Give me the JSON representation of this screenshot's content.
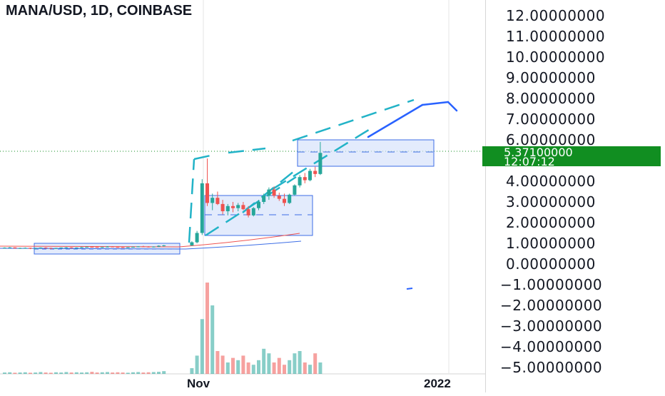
{
  "header": {
    "symbol_title": "MANA/USD, 1D, COINBASE"
  },
  "last_price": {
    "value": "5.37100000",
    "countdown": "12:07:12"
  },
  "colors": {
    "up": "#26a69a",
    "down": "#ef5350",
    "badge": "#118e21",
    "box_fill": "#d7e2fb",
    "box_stroke": "#3d6ee6",
    "dashed": "#22b3c7",
    "arrow": "#2962ff"
  },
  "chart_data": {
    "type": "candlestick",
    "title": "MANA/USD, 1D, COINBASE",
    "y_ticks": [
      "12.00000000",
      "11.00000000",
      "10.00000000",
      "9.00000000",
      "8.00000000",
      "7.00000000",
      "6.00000000",
      "5.37100000",
      "4.00000000",
      "3.00000000",
      "2.00000000",
      "1.00000000",
      "0.00000000",
      "−1.00000000",
      "−2.00000000",
      "−3.00000000",
      "−4.00000000",
      "−5.00000000"
    ],
    "x_ticks": [
      "Nov",
      "2022"
    ],
    "ylim": [
      -5.5,
      12.5
    ],
    "last_close": 5.371,
    "candles": [
      [
        0.78,
        0.8,
        0.75,
        0.79
      ],
      [
        0.79,
        0.82,
        0.77,
        0.8
      ],
      [
        0.8,
        0.81,
        0.74,
        0.76
      ],
      [
        0.76,
        0.79,
        0.73,
        0.77
      ],
      [
        0.77,
        0.8,
        0.75,
        0.78
      ],
      [
        0.78,
        0.79,
        0.72,
        0.74
      ],
      [
        0.74,
        0.78,
        0.72,
        0.77
      ],
      [
        0.77,
        0.8,
        0.75,
        0.79
      ],
      [
        0.79,
        0.81,
        0.76,
        0.77
      ],
      [
        0.77,
        0.79,
        0.74,
        0.75
      ],
      [
        0.75,
        0.78,
        0.73,
        0.77
      ],
      [
        0.77,
        0.8,
        0.76,
        0.79
      ],
      [
        0.79,
        0.82,
        0.77,
        0.8
      ],
      [
        0.8,
        0.81,
        0.76,
        0.78
      ],
      [
        0.78,
        0.8,
        0.76,
        0.79
      ],
      [
        0.79,
        0.83,
        0.78,
        0.81
      ],
      [
        0.81,
        0.84,
        0.79,
        0.83
      ],
      [
        0.83,
        0.85,
        0.8,
        0.82
      ],
      [
        0.82,
        0.84,
        0.79,
        0.8
      ],
      [
        0.8,
        0.83,
        0.78,
        0.82
      ],
      [
        0.82,
        0.86,
        0.8,
        0.84
      ],
      [
        0.84,
        0.86,
        0.81,
        0.82
      ],
      [
        0.82,
        0.84,
        0.79,
        0.81
      ],
      [
        0.81,
        0.83,
        0.78,
        0.8
      ],
      [
        0.8,
        0.82,
        0.77,
        0.81
      ],
      [
        0.81,
        0.84,
        0.79,
        0.83
      ],
      [
        0.83,
        0.86,
        0.81,
        0.85
      ],
      [
        0.85,
        0.88,
        0.82,
        0.84
      ],
      [
        0.84,
        0.86,
        0.8,
        0.82
      ],
      [
        0.82,
        0.85,
        0.8,
        0.84
      ],
      [
        0.84,
        0.9,
        0.82,
        0.88
      ],
      [
        0.88,
        0.92,
        0.85,
        0.9
      ],
      [
        0.9,
        1.1,
        0.88,
        1.05
      ],
      [
        1.05,
        1.6,
        1.0,
        1.5
      ],
      [
        1.5,
        4.1,
        1.4,
        3.9
      ],
      [
        3.9,
        5.1,
        2.8,
        2.95
      ],
      [
        2.95,
        3.4,
        2.6,
        3.2
      ],
      [
        3.2,
        3.5,
        2.85,
        2.9
      ],
      [
        2.9,
        3.1,
        2.4,
        2.55
      ],
      [
        2.55,
        2.9,
        2.35,
        2.8
      ],
      [
        2.8,
        3.0,
        2.5,
        2.7
      ],
      [
        2.7,
        2.95,
        2.55,
        2.85
      ],
      [
        2.85,
        3.0,
        2.6,
        2.65
      ],
      [
        2.65,
        2.8,
        2.25,
        2.35
      ],
      [
        2.35,
        2.75,
        2.3,
        2.7
      ],
      [
        2.7,
        3.1,
        2.6,
        3.0
      ],
      [
        3.0,
        3.4,
        2.9,
        3.3
      ],
      [
        3.3,
        3.7,
        3.1,
        3.6
      ],
      [
        3.6,
        3.75,
        3.2,
        3.3
      ],
      [
        3.3,
        3.45,
        3.05,
        3.15
      ],
      [
        3.15,
        3.4,
        2.8,
        2.95
      ],
      [
        2.95,
        3.4,
        2.9,
        3.35
      ],
      [
        3.35,
        3.85,
        3.3,
        3.8
      ],
      [
        3.8,
        4.3,
        3.7,
        4.2
      ],
      [
        4.2,
        4.4,
        3.9,
        4.05
      ],
      [
        4.05,
        4.6,
        4.0,
        4.5
      ],
      [
        4.5,
        4.7,
        4.2,
        4.35
      ],
      [
        4.35,
        5.9,
        4.3,
        5.37
      ]
    ],
    "volumes": [
      0.6,
      0.7,
      0.5,
      0.6,
      0.7,
      0.5,
      0.6,
      0.8,
      0.6,
      0.5,
      0.7,
      0.6,
      0.8,
      0.6,
      0.7,
      0.6,
      0.7,
      0.9,
      0.6,
      0.7,
      0.8,
      0.6,
      0.7,
      0.6,
      0.5,
      0.7,
      0.8,
      0.6,
      0.7,
      0.8,
      0.9,
      1.2,
      2.5,
      8.0,
      24.0,
      40.0,
      30.0,
      10.0,
      8.0,
      5.0,
      7.0,
      6.0,
      8.0,
      5.0,
      4.0,
      6.0,
      11.0,
      9.0,
      5.0,
      7.0,
      4.0,
      6.0,
      9.0,
      10.0,
      5.0,
      4.0,
      9.0,
      5.0
    ]
  }
}
